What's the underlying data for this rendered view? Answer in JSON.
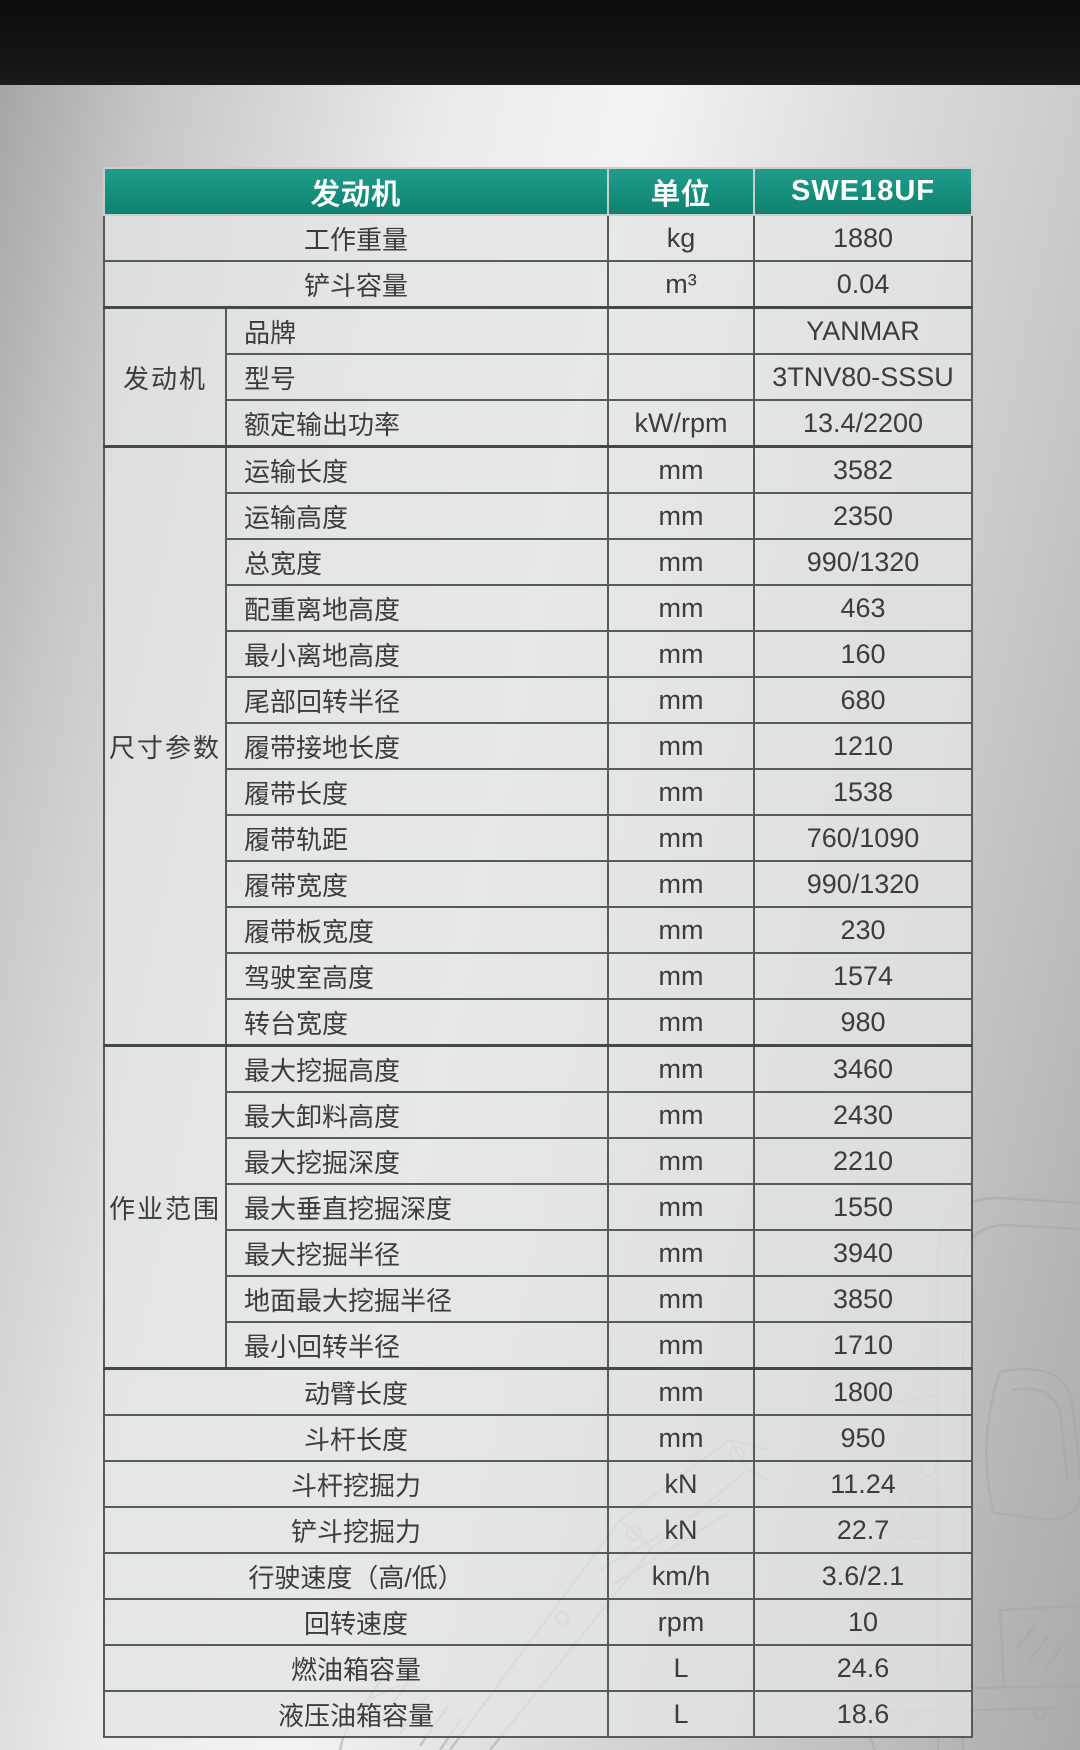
{
  "model": "SWE18UF",
  "accent_color": "#17917f",
  "table": {
    "header": {
      "section": "发动机",
      "unit": "单位",
      "model": "SWE18UF"
    },
    "rows": [
      {
        "merged": true,
        "label": "工作重量",
        "unit": "kg",
        "value": "1880"
      },
      {
        "merged": true,
        "label": "铲斗容量",
        "unit": "m³",
        "value": "0.04"
      },
      {
        "group": "发动机",
        "group_span": 3,
        "label": "品牌",
        "unit": "",
        "value": "YANMAR"
      },
      {
        "label": "型号",
        "unit": "",
        "value": "3TNV80-SSSU"
      },
      {
        "label": "额定输出功率",
        "unit": "kW/rpm",
        "value": "13.4/2200"
      },
      {
        "group": "尺寸参数",
        "group_span": 13,
        "label": "运输长度",
        "unit": "mm",
        "value": "3582"
      },
      {
        "label": "运输高度",
        "unit": "mm",
        "value": "2350"
      },
      {
        "label": "总宽度",
        "unit": "mm",
        "value": "990/1320"
      },
      {
        "label": "配重离地高度",
        "unit": "mm",
        "value": "463"
      },
      {
        "label": "最小离地高度",
        "unit": "mm",
        "value": "160"
      },
      {
        "label": "尾部回转半径",
        "unit": "mm",
        "value": "680"
      },
      {
        "label": "履带接地长度",
        "unit": "mm",
        "value": "1210"
      },
      {
        "label": "履带长度",
        "unit": "mm",
        "value": "1538"
      },
      {
        "label": "履带轨距",
        "unit": "mm",
        "value": "760/1090"
      },
      {
        "label": "履带宽度",
        "unit": "mm",
        "value": "990/1320"
      },
      {
        "label": "履带板宽度",
        "unit": "mm",
        "value": "230"
      },
      {
        "label": "驾驶室高度",
        "unit": "mm",
        "value": "1574"
      },
      {
        "label": "转台宽度",
        "unit": "mm",
        "value": "980"
      },
      {
        "group": "作业范围",
        "group_span": 7,
        "label": "最大挖掘高度",
        "unit": "mm",
        "value": "3460"
      },
      {
        "label": "最大卸料高度",
        "unit": "mm",
        "value": "2430"
      },
      {
        "label": "最大挖掘深度",
        "unit": "mm",
        "value": "2210"
      },
      {
        "label": "最大垂直挖掘深度",
        "unit": "mm",
        "value": "1550"
      },
      {
        "label": "最大挖掘半径",
        "unit": "mm",
        "value": "3940"
      },
      {
        "label": "地面最大挖掘半径",
        "unit": "mm",
        "value": "3850"
      },
      {
        "label": "最小回转半径",
        "unit": "mm",
        "value": "1710"
      },
      {
        "merged": true,
        "label": "动臂长度",
        "unit": "mm",
        "value": "1800"
      },
      {
        "merged": true,
        "label": "斗杆长度",
        "unit": "mm",
        "value": "950"
      },
      {
        "merged": true,
        "label": "斗杆挖掘力",
        "unit": "kN",
        "value": "11.24"
      },
      {
        "merged": true,
        "label": "铲斗挖掘力",
        "unit": "kN",
        "value": "22.7"
      },
      {
        "merged": true,
        "label": "行驶速度（高/低）",
        "unit": "km/h",
        "value": "3.6/2.1"
      },
      {
        "merged": true,
        "label": "回转速度",
        "unit": "rpm",
        "value": "10"
      },
      {
        "merged": true,
        "label": "燃油箱容量",
        "unit": "L",
        "value": "24.6"
      },
      {
        "merged": true,
        "label": "液压油箱容量",
        "unit": "L",
        "value": "18.6"
      }
    ]
  }
}
